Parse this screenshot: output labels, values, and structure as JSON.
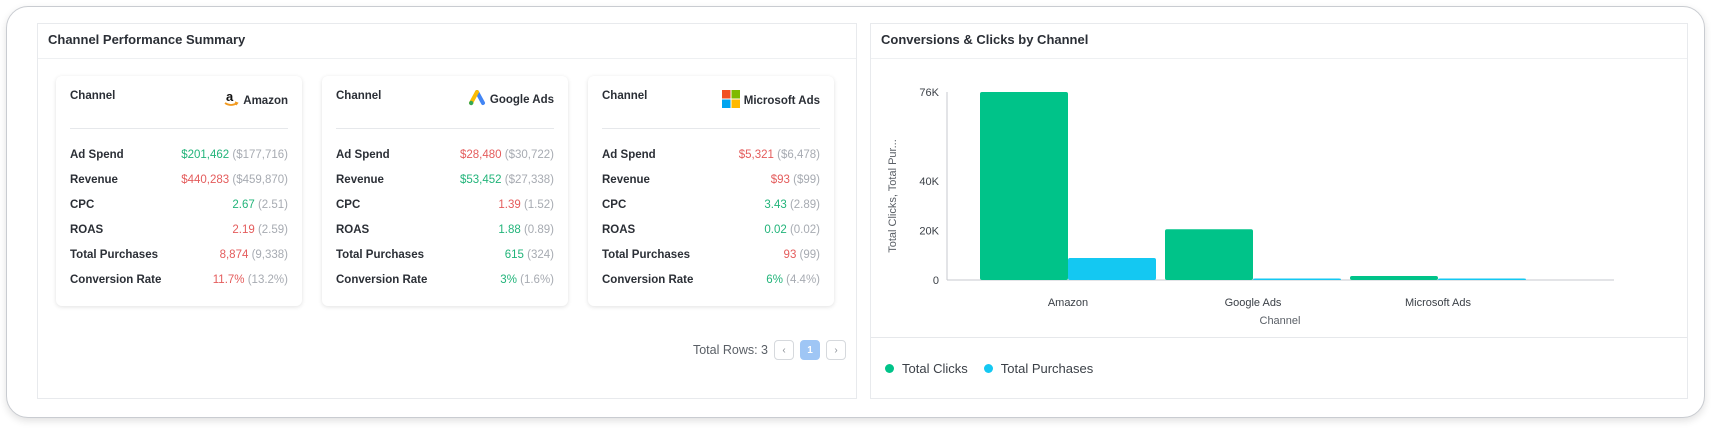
{
  "summary": {
    "title": "Channel Performance Summary",
    "cards": [
      {
        "channel_label": "Channel",
        "brand": "Amazon",
        "icon": "amazon-logo-icon",
        "metrics": [
          {
            "label": "Ad Spend",
            "value": "$201,462",
            "prev": "($177,716)",
            "trend": "pos"
          },
          {
            "label": "Revenue",
            "value": "$440,283",
            "prev": "($459,870)",
            "trend": "neg"
          },
          {
            "label": "CPC",
            "value": "2.67",
            "prev": "(2.51)",
            "trend": "pos"
          },
          {
            "label": "ROAS",
            "value": "2.19",
            "prev": "(2.59)",
            "trend": "neg"
          },
          {
            "label": "Total Purchases",
            "value": "8,874",
            "prev": "(9,338)",
            "trend": "neg"
          },
          {
            "label": "Conversion Rate",
            "value": "11.7%",
            "prev": "(13.2%)",
            "trend": "neg"
          }
        ]
      },
      {
        "channel_label": "Channel",
        "brand": "Google Ads",
        "icon": "google-ads-logo-icon",
        "metrics": [
          {
            "label": "Ad Spend",
            "value": "$28,480",
            "prev": "($30,722)",
            "trend": "neg"
          },
          {
            "label": "Revenue",
            "value": "$53,452",
            "prev": "($27,338)",
            "trend": "pos"
          },
          {
            "label": "CPC",
            "value": "1.39",
            "prev": "(1.52)",
            "trend": "neg"
          },
          {
            "label": "ROAS",
            "value": "1.88",
            "prev": "(0.89)",
            "trend": "pos"
          },
          {
            "label": "Total Purchases",
            "value": "615",
            "prev": "(324)",
            "trend": "pos"
          },
          {
            "label": "Conversion Rate",
            "value": "3%",
            "prev": "(1.6%)",
            "trend": "pos"
          }
        ]
      },
      {
        "channel_label": "Channel",
        "brand": "Microsoft Ads",
        "icon": "microsoft-logo-icon",
        "metrics": [
          {
            "label": "Ad Spend",
            "value": "$5,321",
            "prev": "($6,478)",
            "trend": "neg"
          },
          {
            "label": "Revenue",
            "value": "$93",
            "prev": "($99)",
            "trend": "neg"
          },
          {
            "label": "CPC",
            "value": "3.43",
            "prev": "(2.89)",
            "trend": "pos"
          },
          {
            "label": "ROAS",
            "value": "0.02",
            "prev": "(0.02)",
            "trend": "pos"
          },
          {
            "label": "Total Purchases",
            "value": "93",
            "prev": "(99)",
            "trend": "neg"
          },
          {
            "label": "Conversion Rate",
            "value": "6%",
            "prev": "(4.4%)",
            "trend": "pos"
          }
        ]
      }
    ],
    "pagination": {
      "total_rows_text": "Total Rows: 3",
      "prev_glyph": "‹",
      "page": "1",
      "next_glyph": "›"
    }
  },
  "colors": {
    "positive": "#22b47a",
    "negative": "#e45c5c",
    "clicks": "#00c389",
    "purchases": "#14c8f2"
  },
  "chart": {
    "title": "Conversions & Clicks by Channel"
  },
  "chart_data": {
    "type": "bar",
    "title": "Conversions & Clicks by Channel",
    "xlabel": "Channel",
    "ylabel": "Total Clicks, Total Pur...",
    "categories": [
      "Amazon",
      "Google Ads",
      "Microsoft Ads"
    ],
    "series": [
      {
        "name": "Total Clicks",
        "values": [
          76000,
          20500,
          1600
        ]
      },
      {
        "name": "Total Purchases",
        "values": [
          8874,
          615,
          93
        ]
      }
    ],
    "ylim": [
      0,
      76000
    ],
    "yticks": [
      "0",
      "20K",
      "40K",
      "76K"
    ],
    "ytick_values": [
      0,
      20000,
      40000,
      76000
    ],
    "legend": "bottom-left"
  },
  "legend": {
    "items": [
      {
        "label": "Total Clicks"
      },
      {
        "label": "Total Purchases"
      }
    ]
  }
}
